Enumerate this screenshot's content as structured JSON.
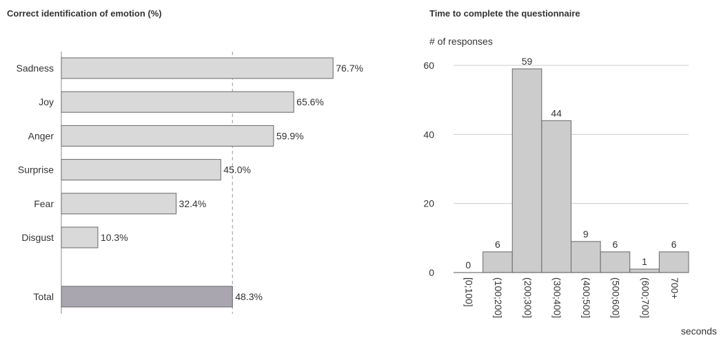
{
  "chart_data": [
    {
      "type": "bar",
      "orientation": "horizontal",
      "title": "Correct identification of emotion (%)",
      "categories": [
        "Sadness",
        "Joy",
        "Anger",
        "Surprise",
        "Fear",
        "Disgust"
      ],
      "values": [
        76.7,
        65.6,
        59.9,
        45.0,
        32.4,
        10.3
      ],
      "value_labels": [
        "76.7%",
        "65.6%",
        "59.9%",
        "45.0%",
        "32.4%",
        "10.3%"
      ],
      "total": {
        "label": "Total",
        "value": 48.3,
        "value_label": "48.3%"
      },
      "reference_line": {
        "value": 48.3,
        "style": "dashed"
      },
      "xlim": [
        0,
        100
      ],
      "colors": {
        "bar": "#d9d9d9",
        "total": "#aaa6b0",
        "bar_stroke": "#666666",
        "reference": "#999999"
      }
    },
    {
      "type": "bar",
      "title": "Time to complete the questionnaire",
      "ylabel": "# of responses",
      "xlabel": "seconds",
      "categories": [
        "[0;100]",
        "(100;200]",
        "(200;300]",
        "(300;400]",
        "(400;500]",
        "(500;600]",
        "(600;700]",
        "700+"
      ],
      "values": [
        0,
        6,
        59,
        44,
        9,
        6,
        1,
        6
      ],
      "value_labels": [
        "0",
        "6",
        "59",
        "44",
        "9",
        "6",
        "1",
        "6"
      ],
      "ylim": [
        0,
        60
      ],
      "yticks": [
        0,
        20,
        40,
        60
      ],
      "ytick_labels": [
        "0",
        "20",
        "40",
        "60"
      ],
      "grid": true,
      "colors": {
        "bar": "#cccccc",
        "bar_stroke": "#666666",
        "grid": "#cccccc"
      }
    }
  ]
}
